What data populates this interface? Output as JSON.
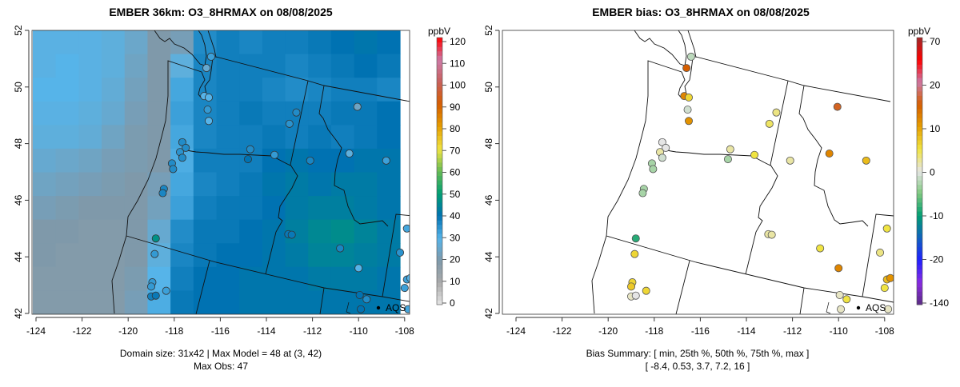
{
  "chart_data": [
    {
      "type": "heatmap",
      "title": "EMBER 36km: O3_8HRMAX on 08/08/2025",
      "units": "ppbV",
      "x_ticks": [
        "-124",
        "-122",
        "-120",
        "-118",
        "-116",
        "-114",
        "-112",
        "-110",
        "-108"
      ],
      "y_ticks": [
        "42",
        "44",
        "46",
        "48",
        "50",
        "52"
      ],
      "xlim": [
        -124.2,
        -107.6
      ],
      "ylim": [
        42,
        52
      ],
      "colorbar": {
        "ticks": [
          "0",
          "10",
          "20",
          "30",
          "40",
          "50",
          "60",
          "70",
          "80",
          "90",
          "100",
          "110",
          "120"
        ],
        "range": [
          0,
          120
        ],
        "stops": [
          "#e5e5e5",
          "#aaaaaa",
          "#7f99aa",
          "#56b4e9",
          "#0072b2",
          "#009e73",
          "#66bb55",
          "#f0e442",
          "#e69f00",
          "#d55e00",
          "#c8605a",
          "#cc79a7",
          "#ff0000"
        ]
      },
      "model_field_coarse": [
        [
          29,
          29,
          29,
          28,
          25,
          20,
          22,
          36,
          38,
          37,
          38,
          38,
          39,
          40,
          41,
          40
        ],
        [
          29,
          30,
          29,
          28,
          24,
          20,
          28,
          37,
          38,
          38,
          38,
          37,
          38,
          39,
          40,
          39
        ],
        [
          30,
          30,
          29,
          27,
          23,
          20,
          32,
          37,
          38,
          38,
          37,
          36,
          37,
          38,
          38,
          37
        ],
        [
          29,
          29,
          28,
          26,
          22,
          20,
          33,
          37,
          38,
          39,
          38,
          38,
          38,
          39,
          39,
          40
        ],
        [
          28,
          28,
          27,
          24,
          21,
          20,
          32,
          37,
          38,
          38,
          39,
          38,
          39,
          38,
          39,
          40
        ],
        [
          26,
          25,
          24,
          22,
          21,
          20,
          31,
          38,
          38,
          38,
          40,
          41,
          40,
          40,
          41,
          41
        ],
        [
          24,
          23,
          22,
          21,
          20,
          22,
          32,
          37,
          38,
          39,
          41,
          42,
          41,
          42,
          42,
          41
        ],
        [
          22,
          21,
          20,
          20,
          20,
          23,
          33,
          38,
          39,
          39,
          40,
          42,
          43,
          43,
          42,
          41
        ],
        [
          20,
          20,
          19,
          19,
          20,
          26,
          36,
          39,
          39,
          40,
          41,
          43,
          45,
          46,
          44,
          42
        ],
        [
          20,
          19,
          19,
          19,
          20,
          28,
          37,
          39,
          40,
          40,
          41,
          42,
          44,
          44,
          43,
          42
        ],
        [
          19,
          19,
          19,
          19,
          21,
          30,
          38,
          40,
          40,
          41,
          41,
          41,
          42,
          42,
          42,
          41
        ],
        [
          19,
          19,
          19,
          19,
          22,
          31,
          39,
          40,
          40,
          41,
          41,
          41,
          41,
          41,
          41,
          41
        ]
      ],
      "caption_line1": "Domain size: 31x42 | Max Model = 48 at (3, 42)",
      "caption_line2": "Max Obs: 47",
      "legend_label": "AQS"
    },
    {
      "type": "scatter",
      "title": "EMBER bias: O3_8HRMAX on 08/08/2025",
      "units": "ppbV",
      "x_ticks": [
        "-124",
        "-122",
        "-120",
        "-118",
        "-116",
        "-114",
        "-112",
        "-110",
        "-108"
      ],
      "y_ticks": [
        "42",
        "44",
        "46",
        "48",
        "50",
        "52"
      ],
      "colorbar": {
        "ticks": [
          "-140",
          "-20",
          "-10",
          "0",
          "10",
          "20",
          "70"
        ],
        "stops": [
          "#5a2d82",
          "#8a2be2",
          "#2020ff",
          "#1060c0",
          "#009e73",
          "#7ec87e",
          "#e5e5e5",
          "#f0e442",
          "#e69f00",
          "#d55e00",
          "#cc79a7",
          "#ff0000",
          "#a02828"
        ]
      },
      "caption_line1": "Bias Summary: [ min, 25th %, 50th %, 75th %, max ]",
      "caption_line2": "[ -8.4,   0.53,   3.7,   7.2,   16 ]",
      "legend_label": "AQS"
    }
  ],
  "stations": [
    {
      "lon": -116.4,
      "lat": 51.07,
      "obs": 33,
      "bias": -2
    },
    {
      "lon": -116.6,
      "lat": 50.67,
      "obs": 26,
      "bias": 15
    },
    {
      "lon": -116.7,
      "lat": 49.68,
      "obs": 30,
      "bias": 12
    },
    {
      "lon": -116.5,
      "lat": 49.63,
      "obs": 30,
      "bias": 6
    },
    {
      "lon": -116.55,
      "lat": 49.2,
      "obs": 34,
      "bias": -1
    },
    {
      "lon": -116.5,
      "lat": 48.8,
      "obs": 30,
      "bias": 11
    },
    {
      "lon": -117.65,
      "lat": 48.05,
      "obs": 36,
      "bias": 0
    },
    {
      "lon": -117.5,
      "lat": 47.85,
      "obs": 36,
      "bias": 0
    },
    {
      "lon": -117.75,
      "lat": 47.7,
      "obs": 35,
      "bias": 2
    },
    {
      "lon": -117.65,
      "lat": 47.5,
      "obs": 36,
      "bias": -1
    },
    {
      "lon": -118.1,
      "lat": 47.3,
      "obs": 36,
      "bias": -3
    },
    {
      "lon": -118.05,
      "lat": 47.1,
      "obs": 36,
      "bias": -3
    },
    {
      "lon": -118.45,
      "lat": 46.4,
      "obs": 37,
      "bias": -3
    },
    {
      "lon": -118.5,
      "lat": 46.25,
      "obs": 37,
      "bias": -3
    },
    {
      "lon": -118.8,
      "lat": 44.65,
      "obs": 47,
      "bias": -8.4
    },
    {
      "lon": -118.85,
      "lat": 44.1,
      "obs": 34,
      "bias": 6
    },
    {
      "lon": -118.95,
      "lat": 43.1,
      "obs": 34,
      "bias": 6
    },
    {
      "lon": -119.0,
      "lat": 42.95,
      "obs": 34,
      "bias": 7
    },
    {
      "lon": -118.35,
      "lat": 42.8,
      "obs": 33,
      "bias": 6
    },
    {
      "lon": -119.0,
      "lat": 42.6,
      "obs": 38,
      "bias": 1
    },
    {
      "lon": -118.8,
      "lat": 42.63,
      "obs": 39,
      "bias": 0
    },
    {
      "lon": -112.7,
      "lat": 49.1,
      "obs": 36,
      "bias": 3
    },
    {
      "lon": -113.0,
      "lat": 48.7,
      "obs": 35,
      "bias": 4
    },
    {
      "lon": -114.7,
      "lat": 47.8,
      "obs": 36,
      "bias": 2
    },
    {
      "lon": -113.65,
      "lat": 47.6,
      "obs": 34,
      "bias": 5
    },
    {
      "lon": -114.8,
      "lat": 47.45,
      "obs": 40,
      "bias": -3
    },
    {
      "lon": -112.1,
      "lat": 47.4,
      "obs": 37,
      "bias": 2
    },
    {
      "lon": -110.05,
      "lat": 49.3,
      "obs": 24,
      "bias": 16
    },
    {
      "lon": -110.4,
      "lat": 47.65,
      "obs": 28,
      "bias": 12
    },
    {
      "lon": -108.8,
      "lat": 47.4,
      "obs": 33,
      "bias": 8
    },
    {
      "lon": -113.05,
      "lat": 44.8,
      "obs": 39,
      "bias": 2
    },
    {
      "lon": -112.9,
      "lat": 44.78,
      "obs": 39,
      "bias": 2
    },
    {
      "lon": -110.8,
      "lat": 44.3,
      "obs": 37,
      "bias": 5
    },
    {
      "lon": -110.0,
      "lat": 43.6,
      "obs": 30,
      "bias": 12
    },
    {
      "lon": -107.9,
      "lat": 45.0,
      "obs": 32,
      "bias": 5
    },
    {
      "lon": -108.2,
      "lat": 44.15,
      "obs": 35,
      "bias": 3
    },
    {
      "lon": -107.9,
      "lat": 43.2,
      "obs": 33,
      "bias": 8
    },
    {
      "lon": -107.75,
      "lat": 43.25,
      "obs": 30,
      "bias": 11
    },
    {
      "lon": -108.0,
      "lat": 42.9,
      "obs": 33,
      "bias": 5
    },
    {
      "lon": -109.95,
      "lat": 42.65,
      "obs": 40,
      "bias": 1
    },
    {
      "lon": -109.65,
      "lat": 42.5,
      "obs": 36,
      "bias": 5
    },
    {
      "lon": -109.9,
      "lat": 42.15,
      "obs": 40,
      "bias": 1
    },
    {
      "lon": -107.85,
      "lat": 42.15,
      "obs": 32,
      "bias": 1
    }
  ]
}
